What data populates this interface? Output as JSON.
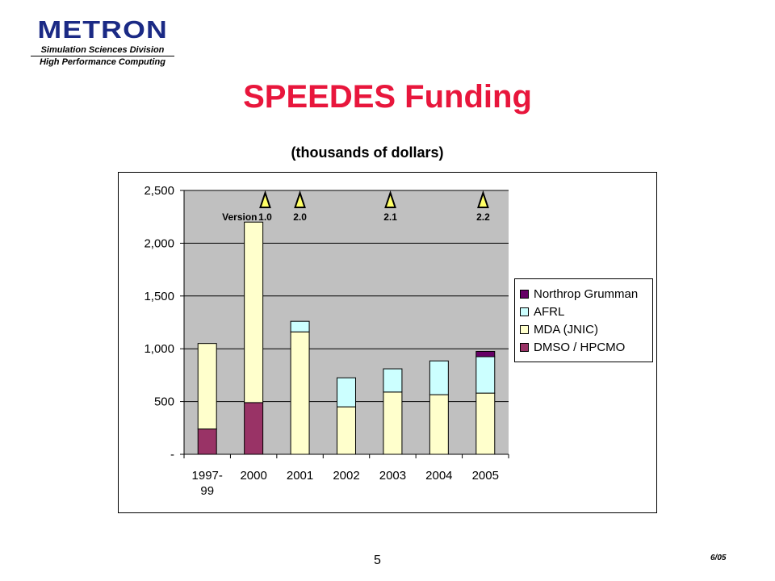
{
  "logo": {
    "name": "METRON",
    "division": "Simulation Sciences Division",
    "group": "High Performance Computing"
  },
  "slide": {
    "title": "SPEEDES Funding",
    "page_number": "5",
    "date": "6/05"
  },
  "chart_data": {
    "type": "bar",
    "stacked": true,
    "subtitle": "(thousands of dollars)",
    "categories": [
      "1997-99",
      "2000",
      "2001",
      "2002",
      "2003",
      "2004",
      "2005"
    ],
    "series": [
      {
        "name": "DMSO / HPCMO",
        "color": "#993366",
        "values": [
          240,
          490,
          0,
          0,
          0,
          0,
          0
        ]
      },
      {
        "name": "MDA (JNIC)",
        "color": "#ffffcc",
        "values": [
          810,
          1710,
          1160,
          450,
          590,
          565,
          580
        ]
      },
      {
        "name": "AFRL",
        "color": "#ccffff",
        "values": [
          0,
          0,
          100,
          275,
          220,
          320,
          345
        ]
      },
      {
        "name": "Northrop Grumman",
        "color": "#660066",
        "values": [
          0,
          0,
          0,
          0,
          0,
          0,
          50
        ]
      }
    ],
    "legend_order": [
      "Northrop Grumman",
      "AFRL",
      "MDA (JNIC)",
      "DMSO / HPCMO"
    ],
    "ylim": [
      0,
      2500
    ],
    "yticks": [
      {
        "value": 0,
        "label": "-"
      },
      {
        "value": 500,
        "label": "500"
      },
      {
        "value": 1000,
        "label": "1,000"
      },
      {
        "value": 1500,
        "label": "1,500"
      },
      {
        "value": 2000,
        "label": "2,000"
      },
      {
        "value": 2500,
        "label": "2,500"
      }
    ],
    "grid": true,
    "plot_background": "#c0c0c0",
    "legend_position": "right",
    "versions": {
      "prefix": "Version",
      "markers": [
        {
          "label": "1.0",
          "x": 1.25
        },
        {
          "label": "2.0",
          "x": 2.0
        },
        {
          "label": "2.1",
          "x": 3.95
        },
        {
          "label": "2.2",
          "x": 5.95
        }
      ],
      "marker_color": "#ffff66"
    }
  }
}
